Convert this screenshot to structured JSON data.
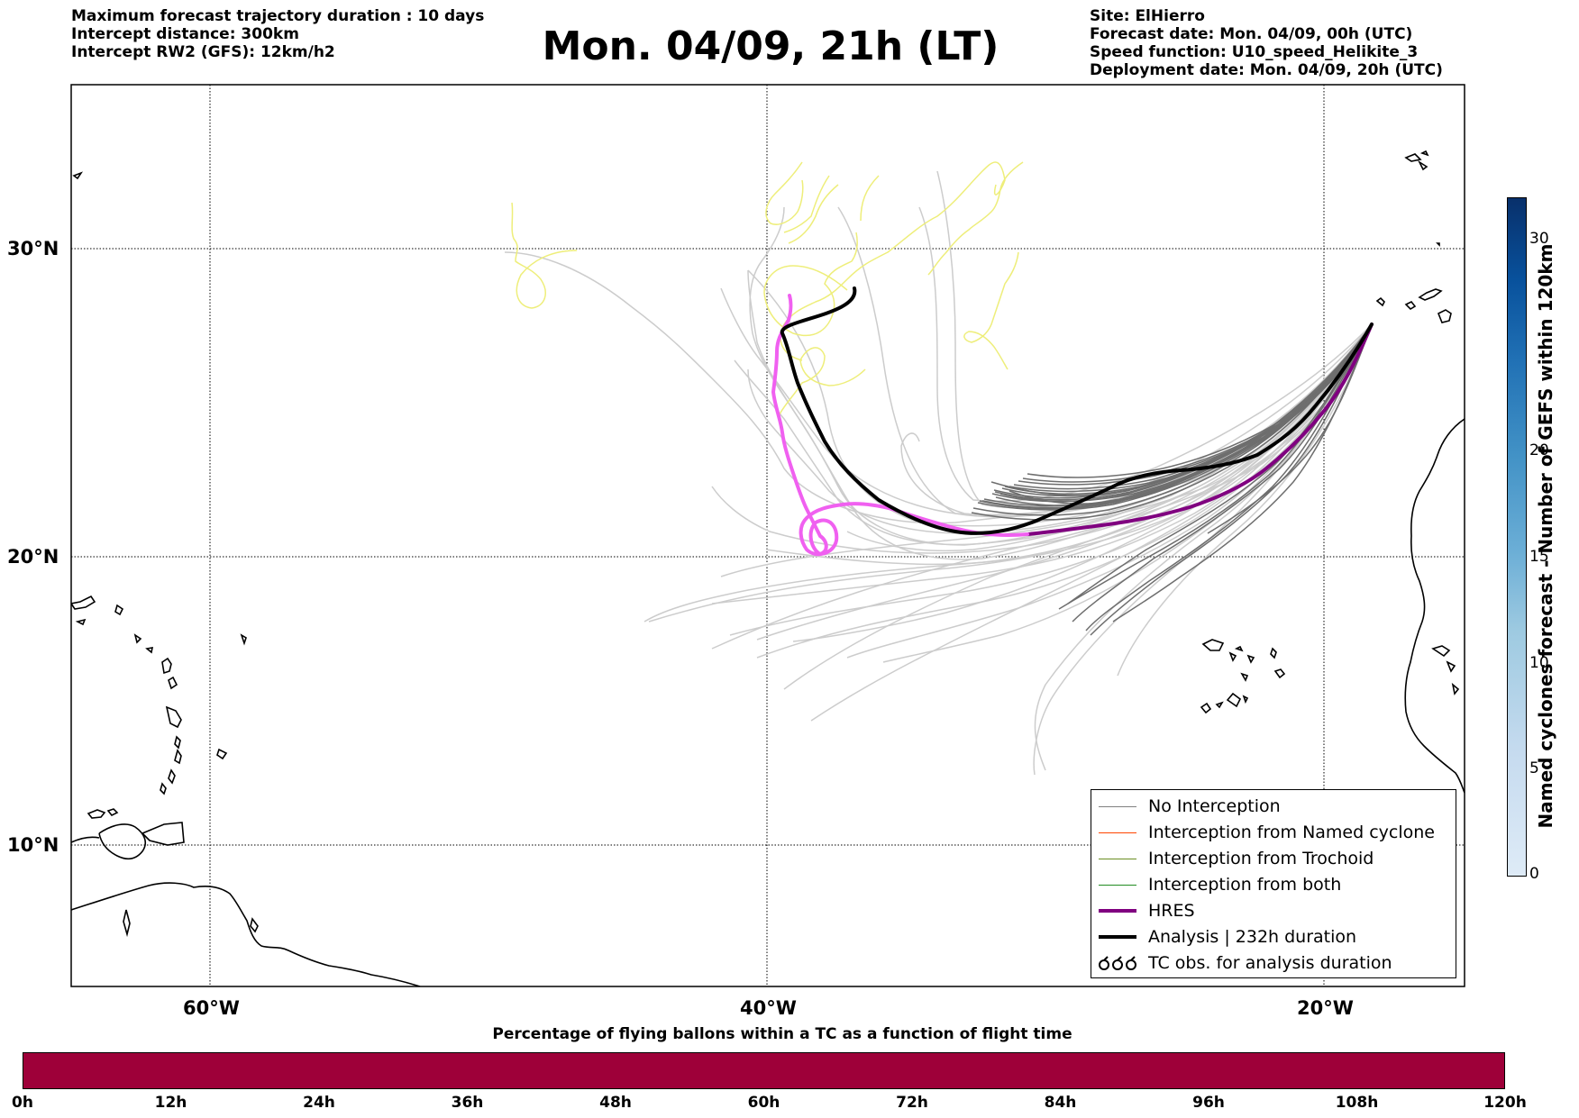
{
  "header": {
    "left": [
      "Maximum forecast trajectory duration : 10 days",
      "Intercept distance: 300km",
      "Intercept RW2 (GFS):  12km/h2"
    ],
    "title": "Mon. 04/09, 21h (LT)",
    "right": [
      "Site: ElHierro",
      "Forecast date: Mon. 04/09, 00h (UTC)",
      "Speed function: U10_speed_Helikite_3",
      "Deployment date: Mon. 04/09, 20h (UTC)"
    ]
  },
  "map": {
    "lon_range": [
      -65,
      15
    ],
    "lat_range": [
      5,
      35
    ],
    "lat_labels": [
      "30°N",
      "20°N",
      "10°N"
    ],
    "lon_labels": [
      "60°W",
      "40°W",
      "20°W"
    ]
  },
  "legend": {
    "items": [
      {
        "label": "No Interception",
        "color": "#808080",
        "width": 1.5
      },
      {
        "label": "Interception from Named cyclone",
        "color": "#ff4500",
        "width": 1.5
      },
      {
        "label": "Interception from Trochoid",
        "color": "#6b8e23",
        "width": 1.5
      },
      {
        "label": "Interception from both",
        "color": "#228b22",
        "width": 1.5
      },
      {
        "label": "HRES",
        "color": "#800080",
        "width": 4
      },
      {
        "label": "Analysis | 232h duration",
        "color": "#000000",
        "width": 4
      },
      {
        "label": "TC obs. for analysis duration",
        "icon": "tc-symbol-icon"
      }
    ]
  },
  "colorbar": {
    "title": "Named cyclones forecast - Number of GEFS within 120km",
    "ticks": [
      "0",
      "5",
      "10",
      "15",
      "20",
      "30"
    ],
    "colors": [
      "#deebf7",
      "#08306b"
    ]
  },
  "progress": {
    "title": "Percentage of flying ballons within a TC as a function of flight time",
    "ticks": [
      "0h",
      "12h",
      "24h",
      "36h",
      "48h",
      "60h",
      "72h",
      "84h",
      "96h",
      "108h",
      "120h"
    ],
    "bar_color": "#9e0039"
  },
  "colors": {
    "gefs": "#cccccc",
    "no_interception": "#6e6e6e",
    "yellow": "#eeee7a",
    "hres_mid": "#800080",
    "hres_far": "#f060f0",
    "analysis": "#000000"
  }
}
